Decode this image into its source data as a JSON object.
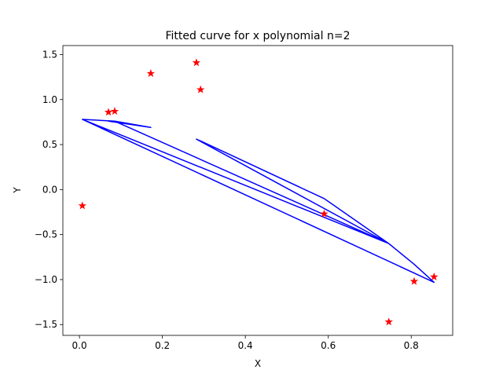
{
  "chart_data": {
    "type": "scatter",
    "title": "Fitted curve for x polynomial n=2",
    "xlabel": "X",
    "ylabel": "Y",
    "xlim": [
      -0.04,
      0.9
    ],
    "ylim": [
      -1.62,
      1.6
    ],
    "xticks": [
      0.0,
      0.2,
      0.4,
      0.6,
      0.8
    ],
    "xtick_labels": [
      "0.0",
      "0.2",
      "0.4",
      "0.6",
      "0.8"
    ],
    "yticks": [
      -1.5,
      -1.0,
      -0.5,
      0.0,
      0.5,
      1.0,
      1.5
    ],
    "ytick_labels": [
      "−1.5",
      "−1.0",
      "−0.5",
      "0.0",
      "0.5",
      "1.0",
      "1.5"
    ],
    "grid": false,
    "series": [
      {
        "kind": "scatter",
        "marker": "star",
        "color": "#ff0000",
        "points": [
          {
            "x": 0.007,
            "y": -0.18
          },
          {
            "x": 0.07,
            "y": 0.86
          },
          {
            "x": 0.085,
            "y": 0.87
          },
          {
            "x": 0.172,
            "y": 1.29
          },
          {
            "x": 0.282,
            "y": 1.41
          },
          {
            "x": 0.292,
            "y": 1.11
          },
          {
            "x": 0.59,
            "y": -0.27
          },
          {
            "x": 0.746,
            "y": -1.47
          },
          {
            "x": 0.807,
            "y": -1.02
          },
          {
            "x": 0.855,
            "y": -0.97
          }
        ]
      },
      {
        "kind": "line",
        "color": "#0000ff",
        "points": [
          {
            "x": 0.007,
            "y": 0.78
          },
          {
            "x": 0.855,
            "y": -1.03
          },
          {
            "x": 0.807,
            "y": -0.83
          },
          {
            "x": 0.746,
            "y": -0.6
          },
          {
            "x": 0.59,
            "y": -0.1
          },
          {
            "x": 0.292,
            "y": 0.54
          },
          {
            "x": 0.282,
            "y": 0.56
          },
          {
            "x": 0.746,
            "y": -0.6
          },
          {
            "x": 0.085,
            "y": 0.76
          },
          {
            "x": 0.07,
            "y": 0.76
          },
          {
            "x": 0.172,
            "y": 0.69
          },
          {
            "x": 0.085,
            "y": 0.76
          },
          {
            "x": 0.007,
            "y": 0.78
          },
          {
            "x": 0.746,
            "y": -0.6
          },
          {
            "x": 0.59,
            "y": -0.1
          }
        ]
      }
    ]
  }
}
